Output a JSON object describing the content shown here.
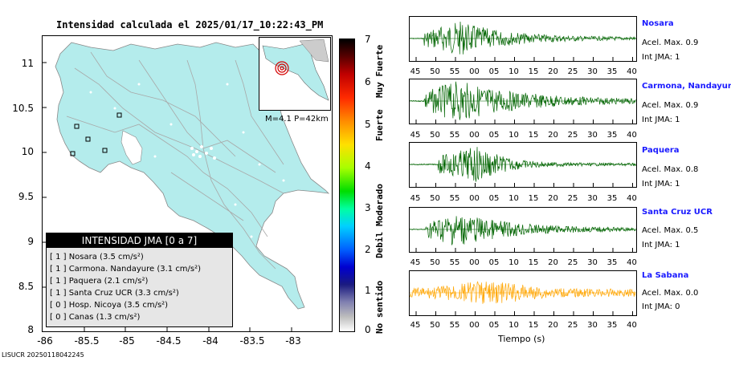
{
  "map": {
    "title": "Intensidad calculada el 2025/01/17_10:22:43_PM",
    "y_ticks": [
      "11",
      "10.5",
      "10",
      "9.5",
      "9",
      "8.5",
      "8"
    ],
    "x_ticks": [
      "-86",
      "-85.5",
      "-85",
      "-84.5",
      "-84",
      "-83.5",
      "-83"
    ],
    "inset_label": "M=4.1 P=42km",
    "footer": "LISUCR 20250118042245",
    "colors": {
      "land": "#b4ecec",
      "roads": "#b0b0b0",
      "epicenter": "#d40000"
    }
  },
  "legend": {
    "header": "INTENSIDAD JMA [0 a 7]",
    "rows": [
      "[ 1 ]  Nosara (3.5 cm/s²)",
      "[ 1 ]  Carmona. Nandayure (3.1 cm/s²)",
      "[ 1 ]  Paquera (2.1 cm/s²)",
      "[ 1 ]  Santa Cruz UCR (3.3 cm/s²)",
      "[ 0 ]  Hosp. Nicoya (3.5 cm/s²)",
      "[ 0 ]  Canas (1.3 cm/s²)"
    ]
  },
  "colorbar": {
    "ticks": [
      "7",
      "6",
      "5",
      "4",
      "3",
      "2",
      "1",
      "0"
    ],
    "words": [
      "Muy Fuerte",
      "Fuerte",
      "Moderado",
      "Debil",
      "No sentido"
    ]
  },
  "seismograms": {
    "time_ticks": [
      "45",
      "50",
      "55",
      "00",
      "05",
      "10",
      "15",
      "20",
      "25",
      "30",
      "35",
      "40"
    ],
    "xlabel": "Tiempo (s)",
    "stations": [
      {
        "name": "Nosara",
        "acel": "Acel. Max. 0.9",
        "jma": "Int JMA: 1",
        "color": "#006400"
      },
      {
        "name": "Carmona, Nandayure",
        "acel": "Acel. Max. 0.9",
        "jma": "Int JMA: 1",
        "color": "#006400"
      },
      {
        "name": "Paquera",
        "acel": "Acel. Max. 0.8",
        "jma": "Int JMA: 1",
        "color": "#006400"
      },
      {
        "name": "Santa Cruz UCR",
        "acel": "Acel. Max. 0.5",
        "jma": "Int JMA: 1",
        "color": "#006400"
      },
      {
        "name": "La Sabana",
        "acel": "Acel. Max. 0.0",
        "jma": "Int JMA: 0",
        "color": "#ffa500"
      }
    ]
  }
}
